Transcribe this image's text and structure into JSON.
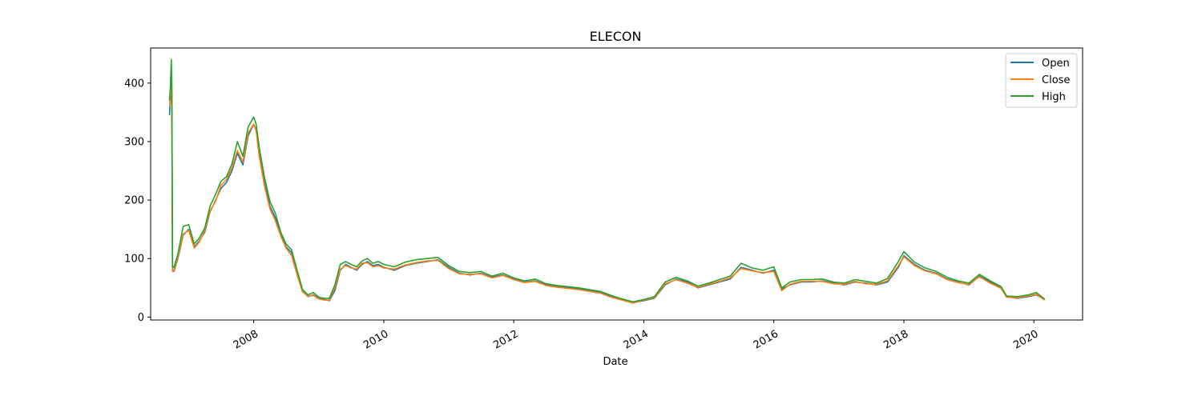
{
  "chart_data": {
    "type": "line",
    "title": "ELECON",
    "xlabel": "Date",
    "ylabel": "",
    "ylim": [
      -5,
      460
    ],
    "xlim": [
      "2006-06-01",
      "2020-10-01"
    ],
    "grid": false,
    "legend_position": "top-right",
    "x_ticks": [
      "2008",
      "2010",
      "2012",
      "2014",
      "2016",
      "2018",
      "2020"
    ],
    "y_ticks": [
      "0",
      "100",
      "200",
      "300",
      "400"
    ],
    "x": [
      "2006-09-15",
      "2006-09-20",
      "2006-09-25",
      "2006-09-28",
      "2006-10-02",
      "2006-10-10",
      "2006-11-01",
      "2006-12-01",
      "2007-01-01",
      "2007-02-01",
      "2007-03-01",
      "2007-04-01",
      "2007-05-01",
      "2007-06-01",
      "2007-07-01",
      "2007-08-01",
      "2007-09-01",
      "2007-10-01",
      "2007-11-01",
      "2007-12-01",
      "2008-01-01",
      "2008-01-15",
      "2008-02-01",
      "2008-03-01",
      "2008-04-01",
      "2008-05-01",
      "2008-06-01",
      "2008-07-01",
      "2008-08-01",
      "2008-09-01",
      "2008-10-01",
      "2008-11-01",
      "2008-12-01",
      "2009-01-01",
      "2009-02-01",
      "2009-03-01",
      "2009-04-01",
      "2009-05-01",
      "2009-06-01",
      "2009-07-01",
      "2009-08-01",
      "2009-09-01",
      "2009-10-01",
      "2009-11-01",
      "2009-12-01",
      "2010-01-01",
      "2010-03-01",
      "2010-05-01",
      "2010-07-01",
      "2010-09-01",
      "2010-11-01",
      "2011-01-01",
      "2011-03-01",
      "2011-05-01",
      "2011-07-01",
      "2011-09-01",
      "2011-11-01",
      "2012-01-01",
      "2012-03-01",
      "2012-05-01",
      "2012-07-01",
      "2012-09-01",
      "2012-11-01",
      "2013-01-01",
      "2013-03-01",
      "2013-05-01",
      "2013-07-01",
      "2013-09-01",
      "2013-11-01",
      "2014-01-01",
      "2014-03-01",
      "2014-05-01",
      "2014-07-01",
      "2014-09-01",
      "2014-11-01",
      "2015-01-01",
      "2015-03-01",
      "2015-05-01",
      "2015-07-01",
      "2015-09-01",
      "2015-11-01",
      "2016-01-01",
      "2016-02-15",
      "2016-04-01",
      "2016-06-01",
      "2016-08-01",
      "2016-10-01",
      "2016-12-01",
      "2017-02-01",
      "2017-04-01",
      "2017-06-01",
      "2017-08-01",
      "2017-10-01",
      "2017-12-01",
      "2018-01-01",
      "2018-03-01",
      "2018-05-01",
      "2018-07-01",
      "2018-09-01",
      "2018-11-01",
      "2019-01-01",
      "2019-03-01",
      "2019-05-01",
      "2019-07-01",
      "2019-08-01",
      "2019-10-01",
      "2019-12-01",
      "2020-01-15",
      "2020-03-01"
    ],
    "series": [
      {
        "name": "Open",
        "color": "#1f77b4",
        "values": [
          345,
          380,
          400,
          390,
          80,
          78,
          100,
          140,
          150,
          120,
          130,
          145,
          180,
          200,
          220,
          230,
          250,
          280,
          260,
          310,
          330,
          320,
          280,
          230,
          190,
          170,
          140,
          120,
          110,
          75,
          45,
          35,
          38,
          32,
          30,
          28,
          45,
          80,
          90,
          85,
          80,
          90,
          95,
          88,
          90,
          85,
          80,
          88,
          92,
          95,
          98,
          85,
          75,
          72,
          75,
          68,
          72,
          65,
          60,
          62,
          55,
          52,
          50,
          48,
          45,
          42,
          35,
          30,
          25,
          28,
          32,
          55,
          65,
          60,
          50,
          55,
          60,
          65,
          85,
          80,
          75,
          80,
          48,
          55,
          60,
          60,
          62,
          58,
          55,
          60,
          58,
          55,
          60,
          85,
          105,
          90,
          80,
          75,
          65,
          60,
          55,
          70,
          60,
          50,
          35,
          32,
          35,
          38,
          30
        ]
      },
      {
        "name": "Close",
        "color": "#ff7f0e",
        "values": [
          360,
          365,
          420,
          380,
          78,
          80,
          102,
          142,
          148,
          118,
          128,
          148,
          182,
          198,
          225,
          235,
          255,
          285,
          265,
          315,
          330,
          318,
          275,
          225,
          185,
          165,
          138,
          118,
          105,
          72,
          43,
          36,
          37,
          31,
          29,
          29,
          50,
          82,
          88,
          84,
          82,
          92,
          93,
          86,
          88,
          84,
          82,
          89,
          93,
          96,
          97,
          83,
          74,
          73,
          74,
          67,
          71,
          64,
          59,
          61,
          54,
          51,
          49,
          47,
          44,
          41,
          34,
          29,
          24,
          29,
          33,
          57,
          64,
          58,
          51,
          56,
          61,
          67,
          83,
          79,
          76,
          78,
          45,
          56,
          61,
          61,
          61,
          57,
          56,
          61,
          57,
          56,
          62,
          88,
          103,
          88,
          79,
          74,
          64,
          59,
          56,
          69,
          58,
          49,
          34,
          33,
          36,
          39,
          29
        ]
      },
      {
        "name": "High",
        "color": "#2ca02c",
        "values": [
          370,
          395,
          440,
          400,
          85,
          85,
          108,
          155,
          158,
          125,
          135,
          152,
          190,
          210,
          232,
          240,
          262,
          300,
          275,
          325,
          342,
          330,
          290,
          240,
          198,
          178,
          145,
          125,
          115,
          80,
          47,
          38,
          42,
          34,
          32,
          32,
          55,
          90,
          95,
          90,
          86,
          96,
          100,
          92,
          95,
          90,
          86,
          94,
          98,
          100,
          102,
          88,
          78,
          76,
          78,
          70,
          75,
          67,
          62,
          65,
          57,
          54,
          52,
          50,
          47,
          44,
          37,
          31,
          26,
          30,
          35,
          60,
          68,
          62,
          53,
          58,
          64,
          70,
          92,
          84,
          80,
          86,
          50,
          60,
          64,
          64,
          65,
          60,
          58,
          64,
          61,
          58,
          66,
          95,
          112,
          94,
          84,
          78,
          68,
          62,
          58,
          73,
          62,
          52,
          36,
          35,
          38,
          42,
          31
        ]
      }
    ]
  }
}
